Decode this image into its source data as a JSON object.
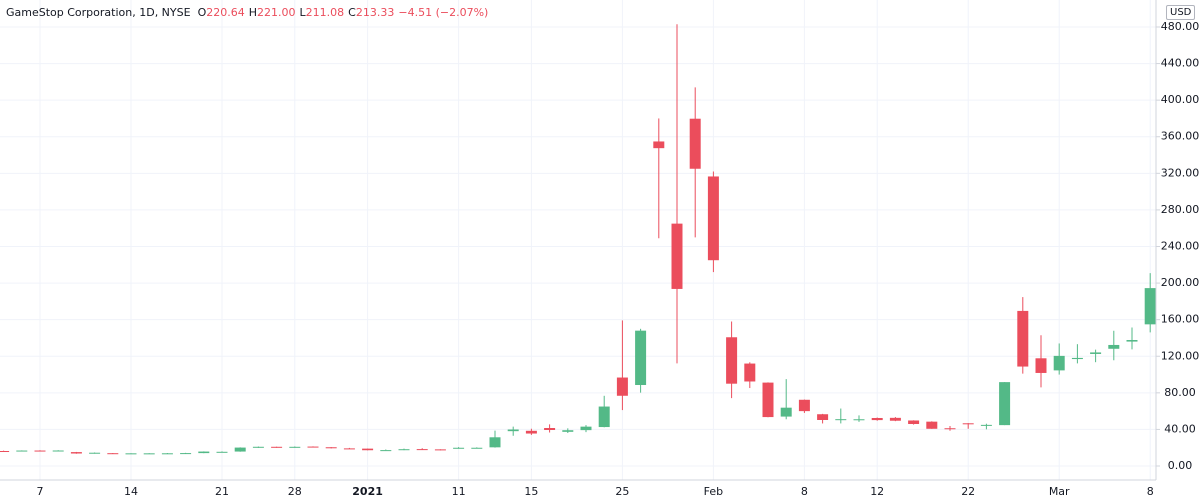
{
  "chart_data": {
    "type": "candlestick",
    "title": "GameStop Corporation, 1D, NYSE",
    "quote": [
      {
        "label": "O",
        "value": "220.64"
      },
      {
        "label": "H",
        "value": "221.00"
      },
      {
        "label": "L",
        "value": "211.08"
      },
      {
        "label": "C",
        "value": "213.33"
      }
    ],
    "change": "−4.51 (−2.07%)",
    "currency": "USD",
    "up_color": "#53b987",
    "down_color": "#eb4d5c",
    "grid": true,
    "categories": [
      null,
      null,
      "7",
      null,
      null,
      null,
      null,
      "14",
      null,
      null,
      null,
      null,
      "21",
      null,
      null,
      null,
      "28",
      null,
      null,
      null,
      "2021",
      null,
      null,
      null,
      null,
      "11",
      null,
      null,
      null,
      "15",
      null,
      null,
      null,
      null,
      "25",
      null,
      null,
      null,
      null,
      "Feb",
      null,
      null,
      null,
      null,
      "8",
      null,
      null,
      null,
      "12",
      null,
      null,
      null,
      null,
      "22",
      null,
      null,
      null,
      null,
      "Mar",
      null,
      null,
      null,
      null,
      "8"
    ],
    "open": [
      16.4,
      16.2,
      16.9,
      16.35,
      15.2,
      13.7,
      14.0,
      13.3,
      13.5,
      13.85,
      13.9,
      14.1,
      15.3,
      15.8,
      20.0,
      21.0,
      20.2,
      21.24,
      20.5,
      19.25,
      19.0,
      17.35,
      17.34,
      18.47,
      18.18,
      19.41,
      19.63,
      20.42,
      38.09,
      38.49,
      41.55,
      37.37,
      39.23,
      42.59,
      96.73,
      88.56,
      354.83,
      265.0,
      379.71,
      316.56,
      140.76,
      112.01,
      91.19,
      54.04,
      72.41,
      56.61,
      50.77,
      50.01,
      52.5,
      52.66,
      49.77,
      48.49,
      41.28,
      46.69,
      44.7,
      44.7,
      169.56,
      117.77,
      104.54,
      116.93,
      122.5,
      128.17,
      136.04,
      154.89
    ],
    "high": [
      16.8,
      17.1,
      17.2,
      17.3,
      15.4,
      14.8,
      14.2,
      14.0,
      14.0,
      14.2,
      14.4,
      16.0,
      16.0,
      20.4,
      21.3,
      21.1,
      21.4,
      21.4,
      20.7,
      19.8,
      19.1,
      18.08,
      18.98,
      19.45,
      18.3,
      20.65,
      20.4,
      38.65,
      43.06,
      40.75,
      45.52,
      41.19,
      44.75,
      76.76,
      159.18,
      150.0,
      380.0,
      483.0,
      413.98,
      322.0,
      158.0,
      113.4,
      91.5,
      95.0,
      72.66,
      57.0,
      62.83,
      55.32,
      53.0,
      53.5,
      50.0,
      48.87,
      43.72,
      46.9,
      46.23,
      91.71,
      184.68,
      142.9,
      133.99,
      133.2,
      127.23,
      147.87,
      151.49,
      210.87
    ],
    "low": [
      15.9,
      16.0,
      16.1,
      16.0,
      13.4,
      13.5,
      13.1,
      13.1,
      13.3,
      13.6,
      13.7,
      14.0,
      15.1,
      15.6,
      19.8,
      19.9,
      20.0,
      20.4,
      19.2,
      18.6,
      17.15,
      17.23,
      17.33,
      18.02,
      17.08,
      19.01,
      19.32,
      20.03,
      33.05,
      34.01,
      36.64,
      36.06,
      37.0,
      42.32,
      61.13,
      80.2,
      249.0,
      112.25,
      250.0,
      212.0,
      74.22,
      85.25,
      53.33,
      51.09,
      58.02,
      46.52,
      46.55,
      48.22,
      49.5,
      49.04,
      45.3,
      40.65,
      38.5,
      40.7,
      40.1,
      44.7,
      101.0,
      86.0,
      99.97,
      112.2,
      113.5,
      115.6,
      127.53,
      146.1
    ],
    "close": [
      16.12,
      16.9,
      16.35,
      16.94,
      13.66,
      14.52,
      13.31,
      13.85,
      13.85,
      13.9,
      14.12,
      15.8,
      15.53,
      20.15,
      21.01,
      20.15,
      20.99,
      20.6,
      19.38,
      18.84,
      17.25,
      17.37,
      18.36,
      18.08,
      17.69,
      19.94,
      19.95,
      31.4,
      39.91,
      35.5,
      39.36,
      39.12,
      43.03,
      65.01,
      76.79,
      147.98,
      347.51,
      193.6,
      325.0,
      225.0,
      90.0,
      92.41,
      53.5,
      63.77,
      60.0,
      50.31,
      51.2,
      51.1,
      50.2,
      49.51,
      45.94,
      40.69,
      40.59,
      46.0,
      44.97,
      91.71,
      108.73,
      101.74,
      120.4,
      118.18,
      124.18,
      132.35,
      137.74,
      194.5
    ],
    "ylim": [
      -15.3,
      509.5
    ],
    "yticks": [
      {
        "value": 0,
        "label": "0.00"
      },
      {
        "value": 40,
        "label": "40.00"
      },
      {
        "value": 80,
        "label": "80.00"
      },
      {
        "value": 120,
        "label": "120.00"
      },
      {
        "value": 160,
        "label": "160.00"
      },
      {
        "value": 200,
        "label": "200.00"
      },
      {
        "value": 240,
        "label": "240.00"
      },
      {
        "value": 280,
        "label": "280.00"
      },
      {
        "value": 320,
        "label": "320.00"
      },
      {
        "value": 360,
        "label": "360.00"
      },
      {
        "value": 400,
        "label": "400.00"
      },
      {
        "value": 440,
        "label": "440.00"
      },
      {
        "value": 480,
        "label": "480.00"
      }
    ]
  }
}
